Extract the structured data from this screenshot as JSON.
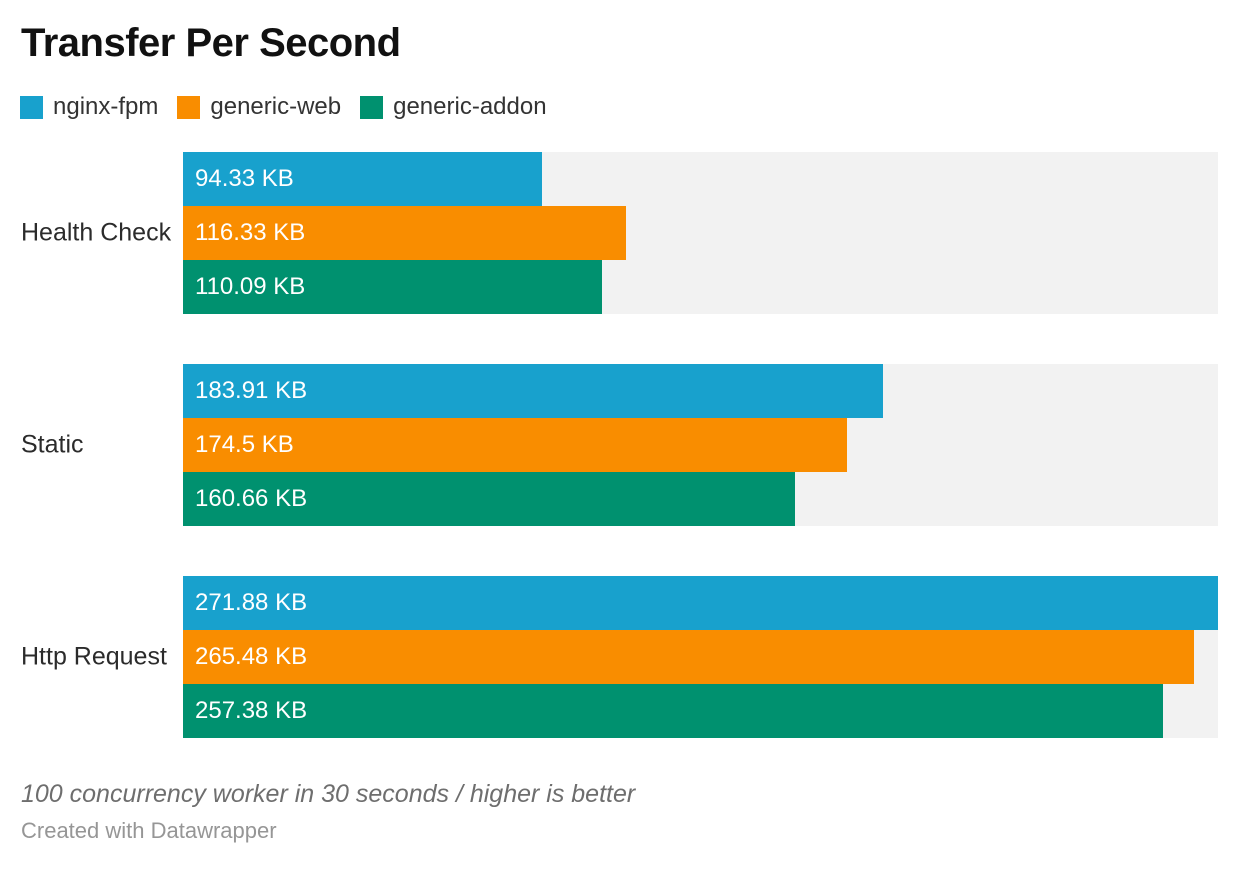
{
  "title": "Transfer Per Second",
  "chart_data": {
    "type": "bar",
    "orientation": "horizontal",
    "title": "Transfer Per Second",
    "unit": "KB",
    "categories": [
      "Health Check",
      "Static",
      "Http Request"
    ],
    "series": [
      {
        "name": "nginx-fpm",
        "color": "#18A1CD",
        "values": [
          94.33,
          183.91,
          271.88
        ],
        "value_labels": [
          "94.33 KB",
          "183.91 KB",
          "271.88 KB"
        ]
      },
      {
        "name": "generic-web",
        "color": "#F98D00",
        "values": [
          116.33,
          174.5,
          265.48
        ],
        "value_labels": [
          "116.33 KB",
          "174.5 KB",
          "265.48 KB"
        ]
      },
      {
        "name": "generic-addon",
        "color": "#00916F",
        "values": [
          110.09,
          160.66,
          257.38
        ],
        "value_labels": [
          "110.09 KB",
          "160.66 KB",
          "257.38 KB"
        ]
      }
    ],
    "xlim": [
      0,
      271.88
    ],
    "grid": "off",
    "legend_position": "top",
    "track_color": "#F2F2F2",
    "value_label_style": "inside-left-white"
  },
  "footer": {
    "note": "100 concurrency worker in 30 seconds / higher is better",
    "credit": "Created with Datawrapper"
  }
}
